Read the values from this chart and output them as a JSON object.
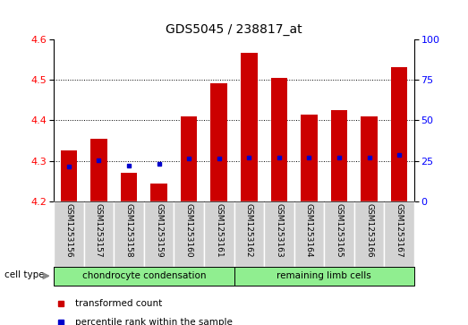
{
  "title": "GDS5045 / 238817_at",
  "samples": [
    "GSM1253156",
    "GSM1253157",
    "GSM1253158",
    "GSM1253159",
    "GSM1253160",
    "GSM1253161",
    "GSM1253162",
    "GSM1253163",
    "GSM1253164",
    "GSM1253165",
    "GSM1253166",
    "GSM1253167"
  ],
  "transformed_count": [
    4.325,
    4.355,
    4.27,
    4.245,
    4.41,
    4.49,
    4.565,
    4.505,
    4.415,
    4.425,
    4.41,
    4.53
  ],
  "percentile_rank": [
    4.285,
    4.302,
    4.288,
    4.292,
    4.305,
    4.305,
    4.308,
    4.308,
    4.308,
    4.308,
    4.308,
    4.315
  ],
  "ylim_left": [
    4.2,
    4.6
  ],
  "ylim_right": [
    0,
    100
  ],
  "yticks_left": [
    4.2,
    4.3,
    4.4,
    4.5,
    4.6
  ],
  "yticks_right": [
    0,
    25,
    50,
    75,
    100
  ],
  "group1_label": "chondrocyte condensation",
  "group1_samples": 6,
  "group2_label": "remaining limb cells",
  "group2_samples": 6,
  "group_color": "#90EE90",
  "label_bg_color": "#d3d3d3",
  "bar_color": "#CC0000",
  "dot_color": "#0000CC",
  "bar_bottom": 4.2,
  "grid_lines": [
    4.3,
    4.4,
    4.5
  ],
  "legend_item1": "transformed count",
  "legend_item2": "percentile rank within the sample",
  "cell_type_label": "cell type"
}
